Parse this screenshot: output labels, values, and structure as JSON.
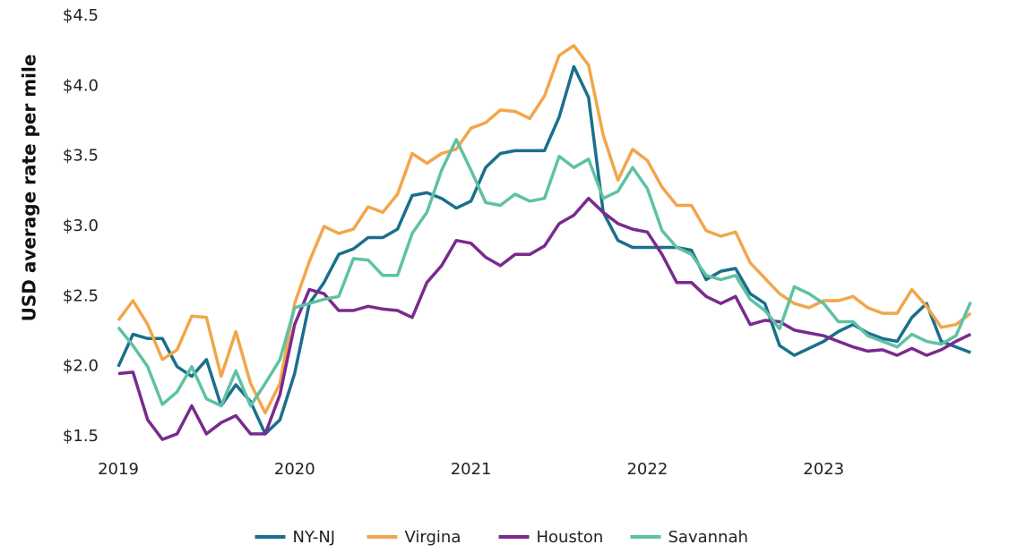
{
  "chart_data": {
    "type": "line",
    "y_label": "USD average rate per mile",
    "categories": [
      "2019",
      null,
      null,
      null,
      null,
      null,
      null,
      null,
      null,
      null,
      null,
      null,
      "2020",
      null,
      null,
      null,
      null,
      null,
      null,
      null,
      null,
      null,
      null,
      null,
      "2021",
      null,
      null,
      null,
      null,
      null,
      null,
      null,
      null,
      null,
      null,
      null,
      "2022",
      null,
      null,
      null,
      null,
      null,
      null,
      null,
      null,
      null,
      null,
      null,
      "2023",
      null,
      null,
      null,
      null,
      null,
      null,
      null,
      null,
      null,
      null
    ],
    "series": [
      {
        "name": "NY-NJ",
        "color": "#1b6f8c",
        "values": [
          2.0,
          2.23,
          2.2,
          2.2,
          2.0,
          1.93,
          2.05,
          1.72,
          1.87,
          1.75,
          1.52,
          1.62,
          1.95,
          2.45,
          2.6,
          2.8,
          2.84,
          2.92,
          2.92,
          2.98,
          3.22,
          3.24,
          3.2,
          3.13,
          3.18,
          3.42,
          3.52,
          3.54,
          3.54,
          3.54,
          3.78,
          4.14,
          3.92,
          3.1,
          2.9,
          2.85,
          2.85,
          2.85,
          2.85,
          2.83,
          2.62,
          2.68,
          2.7,
          2.52,
          2.45,
          2.15,
          2.08,
          2.13,
          2.18,
          2.25,
          2.3,
          2.24,
          2.2,
          2.18,
          2.35,
          2.45,
          2.18,
          2.14,
          2.1
        ]
      },
      {
        "name": "Virgina",
        "color": "#f2a64a",
        "values": [
          2.33,
          2.47,
          2.3,
          2.05,
          2.12,
          2.36,
          2.35,
          1.93,
          2.25,
          1.88,
          1.67,
          1.88,
          2.45,
          2.75,
          3.0,
          2.95,
          2.98,
          3.14,
          3.1,
          3.23,
          3.52,
          3.45,
          3.52,
          3.55,
          3.7,
          3.74,
          3.83,
          3.82,
          3.77,
          3.93,
          4.22,
          4.29,
          4.15,
          3.65,
          3.33,
          3.55,
          3.47,
          3.28,
          3.15,
          3.15,
          2.97,
          2.93,
          2.96,
          2.74,
          2.63,
          2.52,
          2.45,
          2.42,
          2.47,
          2.47,
          2.5,
          2.42,
          2.38,
          2.38,
          2.55,
          2.43,
          2.28,
          2.3,
          2.38
        ]
      },
      {
        "name": "Houston",
        "color": "#7a2a8e",
        "values": [
          1.95,
          1.96,
          1.62,
          1.48,
          1.52,
          1.72,
          1.52,
          1.6,
          1.65,
          1.52,
          1.52,
          1.8,
          2.3,
          2.55,
          2.52,
          2.4,
          2.4,
          2.43,
          2.41,
          2.4,
          2.35,
          2.6,
          2.72,
          2.9,
          2.88,
          2.78,
          2.72,
          2.8,
          2.8,
          2.86,
          3.02,
          3.08,
          3.2,
          3.1,
          3.02,
          2.98,
          2.96,
          2.8,
          2.6,
          2.6,
          2.5,
          2.45,
          2.5,
          2.3,
          2.33,
          2.32,
          2.26,
          2.24,
          2.22,
          2.18,
          2.14,
          2.11,
          2.12,
          2.08,
          2.13,
          2.08,
          2.12,
          2.18,
          2.23
        ]
      },
      {
        "name": "Savannah",
        "color": "#5ec2a2",
        "values": [
          2.28,
          2.15,
          2.0,
          1.73,
          1.82,
          2.0,
          1.77,
          1.72,
          1.97,
          1.72,
          1.88,
          2.05,
          2.42,
          2.45,
          2.48,
          2.5,
          2.77,
          2.76,
          2.65,
          2.65,
          2.95,
          3.1,
          3.4,
          3.62,
          3.4,
          3.17,
          3.15,
          3.23,
          3.18,
          3.2,
          3.5,
          3.42,
          3.48,
          3.2,
          3.25,
          3.42,
          3.27,
          2.97,
          2.85,
          2.8,
          2.65,
          2.62,
          2.65,
          2.48,
          2.4,
          2.27,
          2.57,
          2.52,
          2.45,
          2.32,
          2.32,
          2.22,
          2.18,
          2.14,
          2.23,
          2.18,
          2.16,
          2.22,
          2.46
        ]
      }
    ],
    "ylim": [
      1.5,
      4.5
    ],
    "yticks": [
      {
        "value": 1.5,
        "label": "$1.5"
      },
      {
        "value": 2.0,
        "label": "$2.0"
      },
      {
        "value": 2.5,
        "label": "$2.5"
      },
      {
        "value": 3.0,
        "label": "$3.0"
      },
      {
        "value": 3.5,
        "label": "$3.5"
      },
      {
        "value": 4.0,
        "label": "$4.0"
      },
      {
        "value": 4.5,
        "label": "$4.5"
      }
    ],
    "grid": false,
    "legend": "bottom"
  }
}
